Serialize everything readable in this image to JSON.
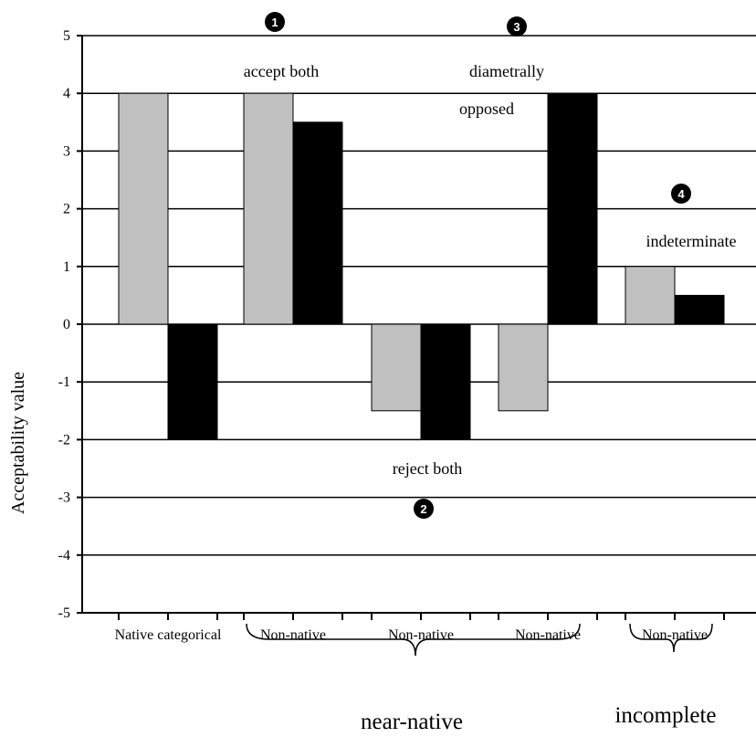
{
  "chart_data": {
    "type": "bar",
    "ylabel": "Acceptability value",
    "ylim": [
      -5,
      5
    ],
    "yticks": [
      5,
      4,
      3,
      2,
      1,
      0,
      -1,
      -2,
      -3,
      -4,
      -5
    ],
    "grid": true,
    "categories": [
      "Native categorical",
      "Non-native",
      "Non-native",
      "Non-native",
      "Non-native"
    ],
    "series": [
      {
        "color": "#c0c0c0",
        "values": [
          4,
          4,
          -1.5,
          -1.5,
          1
        ]
      },
      {
        "color": "#000000",
        "values": [
          -2,
          3.5,
          -2,
          4,
          0.5
        ]
      }
    ],
    "annotations": {
      "accept_both": "accept both",
      "reject_both": "reject both",
      "diametrally": "diametrally",
      "opposed": "opposed",
      "indeterminate": "indeterminate"
    },
    "markers": [
      "1",
      "2",
      "3",
      "4"
    ],
    "groups": {
      "near_native": "near-native",
      "incomplete": "incomplete"
    }
  }
}
